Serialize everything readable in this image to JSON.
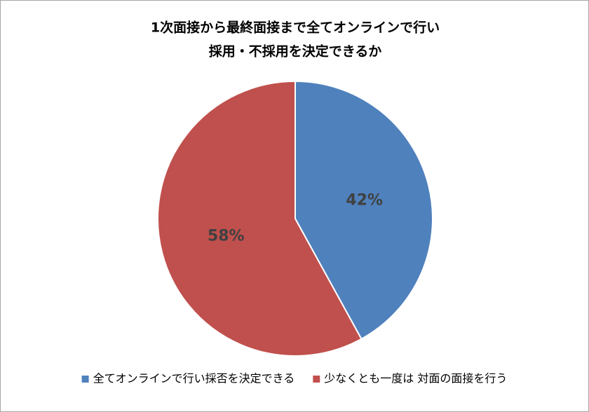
{
  "chart_data": {
    "type": "pie",
    "title": [
      "1次面接から最終面接まで全てオンラインで行い",
      "採用・不採用を決定できるか"
    ],
    "categories": [
      "全てオンラインで行い採否を決定できる",
      "少なくとも一度は 対面の面接を行う"
    ],
    "values": [
      42,
      58
    ],
    "value_labels": [
      "42%",
      "58%"
    ],
    "colors": [
      "#4f81bd",
      "#c0504d"
    ],
    "legend": "bottom"
  }
}
